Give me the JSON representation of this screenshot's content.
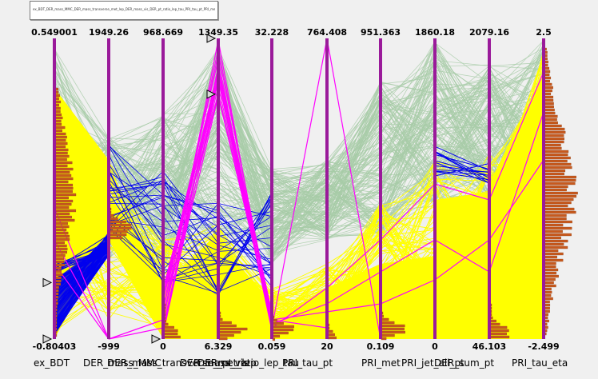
{
  "title": "ex_BDT_DER_mass_MMC_DER_mass_transverse_met_lep_DER_mass_vis_DER_pt_ratio_lep_tau_PRI_tau_pt_PRI_met_PRI_jet_all_pt_DER_sum_pt_PRI_tau_eta",
  "colors": {
    "background": "#f0f0f0",
    "axis": "#9a1a9a",
    "fill": "#ffff00",
    "context": "#a8cca8",
    "selected": "#0000ee",
    "highlight": "#ff00ff",
    "histogram": "#c85a1e"
  },
  "chart_data": {
    "type": "parallel_coordinates",
    "axes": [
      {
        "name": "ex_BDT",
        "max": "0.549001",
        "min": "-0.80403"
      },
      {
        "name": "DER_mass_MMC",
        "max": "1949.26",
        "min": "-999"
      },
      {
        "name": "DER_mass_transverse_met_lep",
        "max": "968.669",
        "min": "0"
      },
      {
        "name": "DER_mass_vis",
        "max": "1349.35",
        "min": "6.329"
      },
      {
        "name": "DER_pt_ratio_lep_tau",
        "max": "32.228",
        "min": "0.059"
      },
      {
        "name": "PRI_tau_pt",
        "max": "764.408",
        "min": "20"
      },
      {
        "name": "PRI_met",
        "max": "951.363",
        "min": "0.109"
      },
      {
        "name": "PRI_jet_all_pt",
        "max": "1860.18",
        "min": "0"
      },
      {
        "name": "DER_sum_pt",
        "max": "2079.16",
        "min": "46.103"
      },
      {
        "name": "PRI_tau_eta",
        "max": "2.5",
        "min": "-2.499"
      }
    ],
    "range_markers": [
      {
        "axis": "ex_BDT",
        "value": -0.55
      },
      {
        "axis": "ex_BDT",
        "value": -0.80403
      },
      {
        "axis": "DER_mass_transverse_met_lep",
        "value": 0
      },
      {
        "axis": "DER_mass_vis",
        "value": 1349.35
      },
      {
        "axis": "DER_mass_vis",
        "value": 1100
      }
    ]
  }
}
